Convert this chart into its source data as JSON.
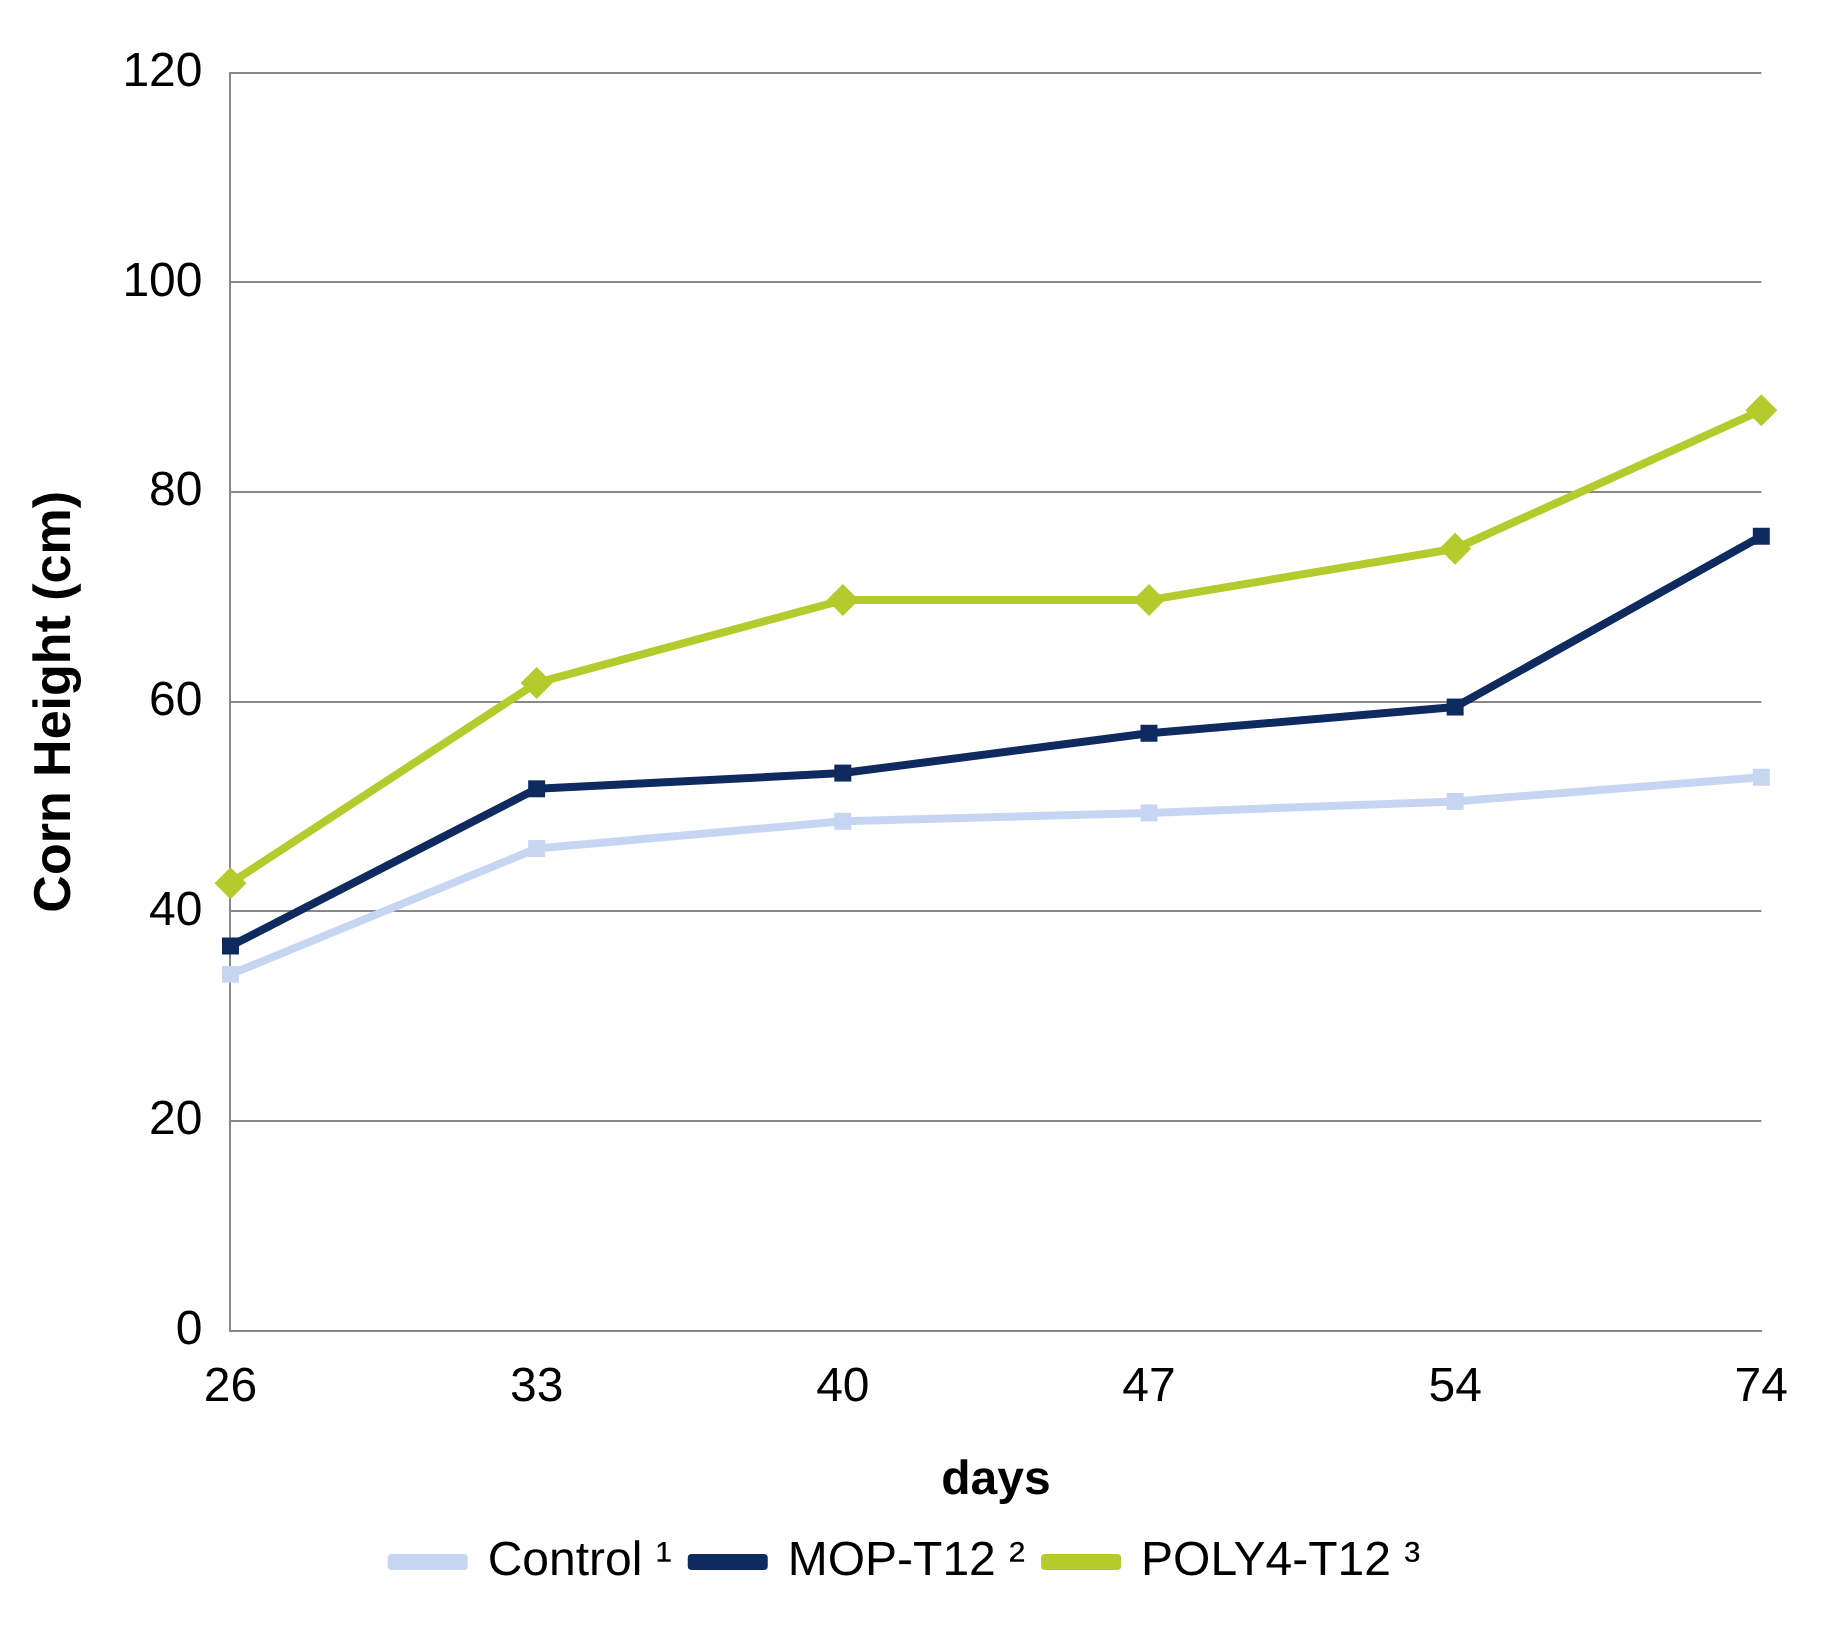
{
  "chart_data": {
    "type": "line",
    "xlabel": "days",
    "ylabel": "Corn Height (cm)",
    "categories": [
      "26",
      "33",
      "40",
      "47",
      "54",
      "74"
    ],
    "series": [
      {
        "name": "Control ¹",
        "color": "#c6d6f2",
        "marker": "square",
        "values": [
          34,
          46,
          48.6,
          49.4,
          50.5,
          52.8
        ]
      },
      {
        "name": "MOP-T12 ²",
        "color": "#0e2a5f",
        "marker": "square",
        "values": [
          36.7,
          51.7,
          53.2,
          57,
          59.5,
          75.8
        ]
      },
      {
        "name": "POLY4-T12 ³",
        "color": "#b3cb2d",
        "marker": "diamond",
        "values": [
          42.7,
          61.8,
          69.7,
          69.7,
          74.6,
          87.8
        ]
      }
    ],
    "ylim": [
      0,
      120
    ],
    "yticks": [
      0,
      20,
      40,
      60,
      80,
      100,
      120
    ],
    "grid": "y",
    "legend": "bottom",
    "line_style": "solid"
  }
}
